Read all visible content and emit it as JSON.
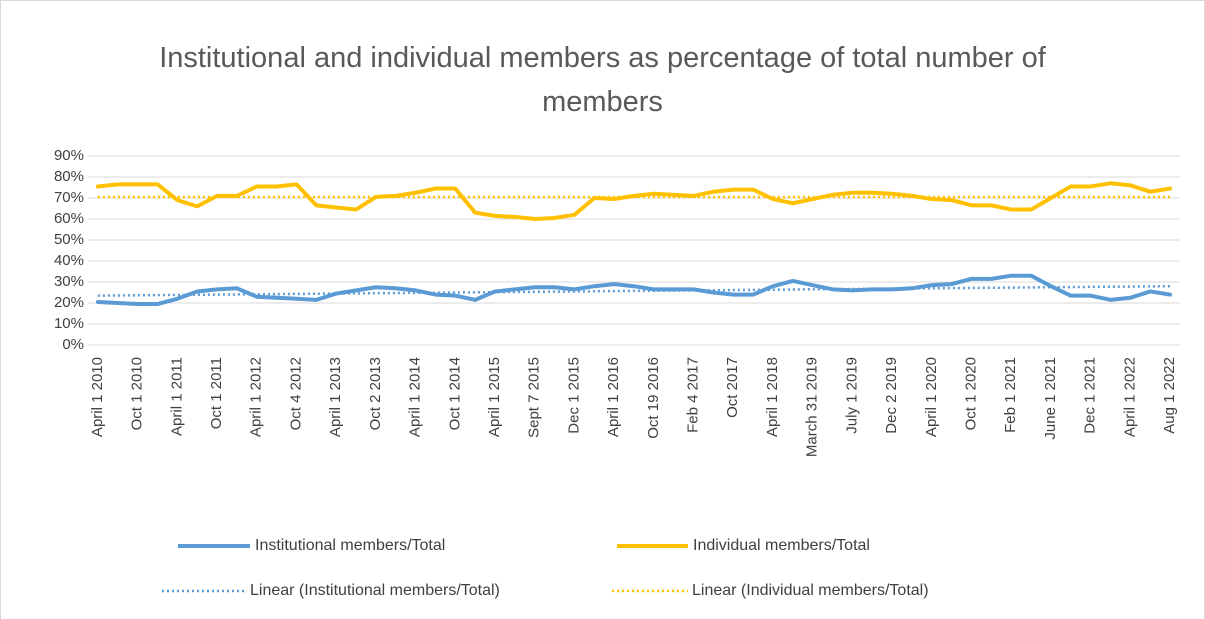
{
  "chart_data": {
    "type": "line",
    "title": "Institutional and individual members as percentage of total number of members",
    "categories": [
      "April 1 2010",
      null,
      "Oct 1 2010",
      null,
      "April 1 2011",
      null,
      "Oct 1 2011",
      null,
      "April 1 2012",
      null,
      "Oct 4 2012",
      null,
      "April 1 2013",
      null,
      "Oct 2 2013",
      null,
      "April 1 2014",
      null,
      "Oct 1 2014",
      null,
      "April 1 2015",
      null,
      "Sept 7 2015",
      null,
      "Dec 1 2015",
      null,
      "April 1 2016",
      null,
      "Oct 19 2016",
      null,
      "Feb 4 2017",
      null,
      "Oct 2017",
      null,
      "April 1 2018",
      null,
      "March 31 2019",
      null,
      "July 1 2019",
      null,
      "Dec 2 2019",
      null,
      "April 1 2020",
      null,
      "Oct 1 2020",
      null,
      "Feb 1 2021",
      null,
      "June 1 2021",
      null,
      "Dec 1 2021",
      null,
      "April 1 2022",
      null,
      "Aug 1 2022"
    ],
    "series": [
      {
        "name": "Institutional members/Total",
        "color": "#5b9bd5",
        "values": [
          20.5,
          20,
          19.5,
          19.5,
          22,
          25.5,
          26.5,
          27,
          23,
          22.5,
          22,
          21.5,
          24.5,
          26,
          27.5,
          27,
          26,
          24,
          23.5,
          21.5,
          25.5,
          26.5,
          27.5,
          27.5,
          26.5,
          28,
          29,
          28,
          26.5,
          26.5,
          26.5,
          25,
          24,
          24,
          28,
          30.5,
          28.5,
          26.5,
          26,
          26.5,
          26.5,
          27,
          28.5,
          29,
          31.5,
          31.5,
          33,
          33,
          28,
          23.5,
          23.5,
          21.5,
          22.5,
          25.5,
          24
        ]
      },
      {
        "name": "Individual members/Total",
        "color": "#ffc000",
        "values": [
          75.5,
          76.5,
          76.5,
          76.5,
          69,
          66,
          71,
          71,
          75.5,
          75.5,
          76.5,
          66.5,
          65.5,
          64.5,
          70.5,
          71,
          72.5,
          74.5,
          74.5,
          63,
          61.5,
          61,
          60,
          60.5,
          62,
          70,
          69.5,
          71,
          72,
          71.5,
          71,
          73,
          74,
          74,
          69.5,
          67.5,
          69.5,
          71.5,
          72.5,
          72.5,
          72,
          71,
          69.5,
          69,
          66.5,
          66.5,
          64.5,
          64.5,
          70,
          75.5,
          75.5,
          77,
          76,
          73,
          74.5
        ]
      }
    ],
    "trendlines": [
      {
        "name": "Linear (Institutional members/Total)",
        "color": "#5b9bd5",
        "start": 23.5,
        "end": 28
      },
      {
        "name": "Linear (Individual members/Total)",
        "color": "#ffc000",
        "start": 70.5,
        "end": 70.5
      }
    ],
    "ylim": [
      0,
      90
    ],
    "yticks": [
      {
        "value": 0,
        "label": "0%"
      },
      {
        "value": 10,
        "label": "10%"
      },
      {
        "value": 20,
        "label": "20%"
      },
      {
        "value": 30,
        "label": "30%"
      },
      {
        "value": 40,
        "label": "40%"
      },
      {
        "value": 50,
        "label": "50%"
      },
      {
        "value": 60,
        "label": "60%"
      },
      {
        "value": 70,
        "label": "70%"
      },
      {
        "value": 80,
        "label": "80%"
      },
      {
        "value": 90,
        "label": "90%"
      }
    ],
    "grid": true
  }
}
